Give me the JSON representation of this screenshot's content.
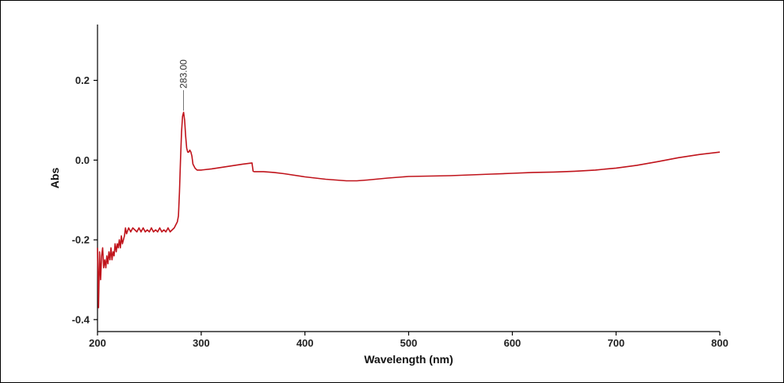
{
  "chart_data": {
    "type": "line",
    "title": "",
    "xlabel": "Wavelength (nm)",
    "ylabel": "Abs",
    "xlim": [
      200,
      800
    ],
    "ylim": [
      -0.43,
      0.34
    ],
    "x_ticks": [
      200,
      300,
      400,
      500,
      600,
      700,
      800
    ],
    "x_tick_labels": [
      "200",
      "300",
      "400",
      "500",
      "600",
      "700",
      "800"
    ],
    "y_ticks": [
      -0.4,
      -0.2,
      0.0,
      0.2
    ],
    "y_tick_labels": [
      "-0.4",
      "-0.2",
      "0.0",
      "0.2"
    ],
    "grid": false,
    "line_color": "#c0141c",
    "annotations": [
      {
        "x": 283,
        "y": 0.12,
        "label": "283.00"
      }
    ],
    "series": [
      {
        "x": [
          200,
          201,
          202,
          203,
          204,
          205,
          206,
          207,
          208,
          209,
          210,
          211,
          212,
          213,
          214,
          215,
          216,
          217,
          218,
          219,
          220,
          221,
          222,
          223,
          224,
          225,
          226,
          227,
          228,
          230,
          232,
          234,
          236,
          238,
          240,
          242,
          244,
          246,
          248,
          250,
          252,
          254,
          256,
          258,
          260,
          262,
          264,
          266,
          268,
          270,
          272,
          274,
          276,
          277,
          278,
          279,
          280,
          281,
          282,
          283,
          284,
          285,
          286,
          287,
          288,
          289,
          290,
          291,
          292,
          294,
          296,
          298,
          300,
          310,
          320,
          330,
          340,
          349,
          350,
          351,
          360,
          370,
          380,
          400,
          420,
          440,
          450,
          460,
          480,
          500,
          520,
          540,
          560,
          580,
          600,
          620,
          640,
          660,
          680,
          700,
          720,
          740,
          760,
          780,
          800
        ],
        "y": [
          -0.22,
          -0.37,
          -0.23,
          -0.3,
          -0.24,
          -0.22,
          -0.27,
          -0.25,
          -0.27,
          -0.24,
          -0.26,
          -0.23,
          -0.25,
          -0.22,
          -0.25,
          -0.23,
          -0.24,
          -0.21,
          -0.23,
          -0.21,
          -0.22,
          -0.2,
          -0.22,
          -0.19,
          -0.21,
          -0.2,
          -0.19,
          -0.17,
          -0.185,
          -0.17,
          -0.18,
          -0.17,
          -0.175,
          -0.18,
          -0.17,
          -0.18,
          -0.17,
          -0.18,
          -0.175,
          -0.18,
          -0.17,
          -0.18,
          -0.175,
          -0.18,
          -0.17,
          -0.18,
          -0.175,
          -0.18,
          -0.17,
          -0.18,
          -0.175,
          -0.17,
          -0.16,
          -0.155,
          -0.14,
          -0.08,
          0.0,
          0.07,
          0.11,
          0.12,
          0.1,
          0.06,
          0.03,
          0.02,
          0.02,
          0.025,
          0.02,
          0.01,
          -0.01,
          -0.02,
          -0.025,
          -0.025,
          -0.025,
          -0.022,
          -0.018,
          -0.014,
          -0.01,
          -0.007,
          -0.028,
          -0.029,
          -0.029,
          -0.031,
          -0.034,
          -0.042,
          -0.048,
          -0.052,
          -0.052,
          -0.05,
          -0.045,
          -0.041,
          -0.04,
          -0.039,
          -0.037,
          -0.035,
          -0.033,
          -0.031,
          -0.03,
          -0.028,
          -0.025,
          -0.02,
          -0.013,
          -0.004,
          0.006,
          0.014,
          0.02
        ]
      }
    ]
  }
}
